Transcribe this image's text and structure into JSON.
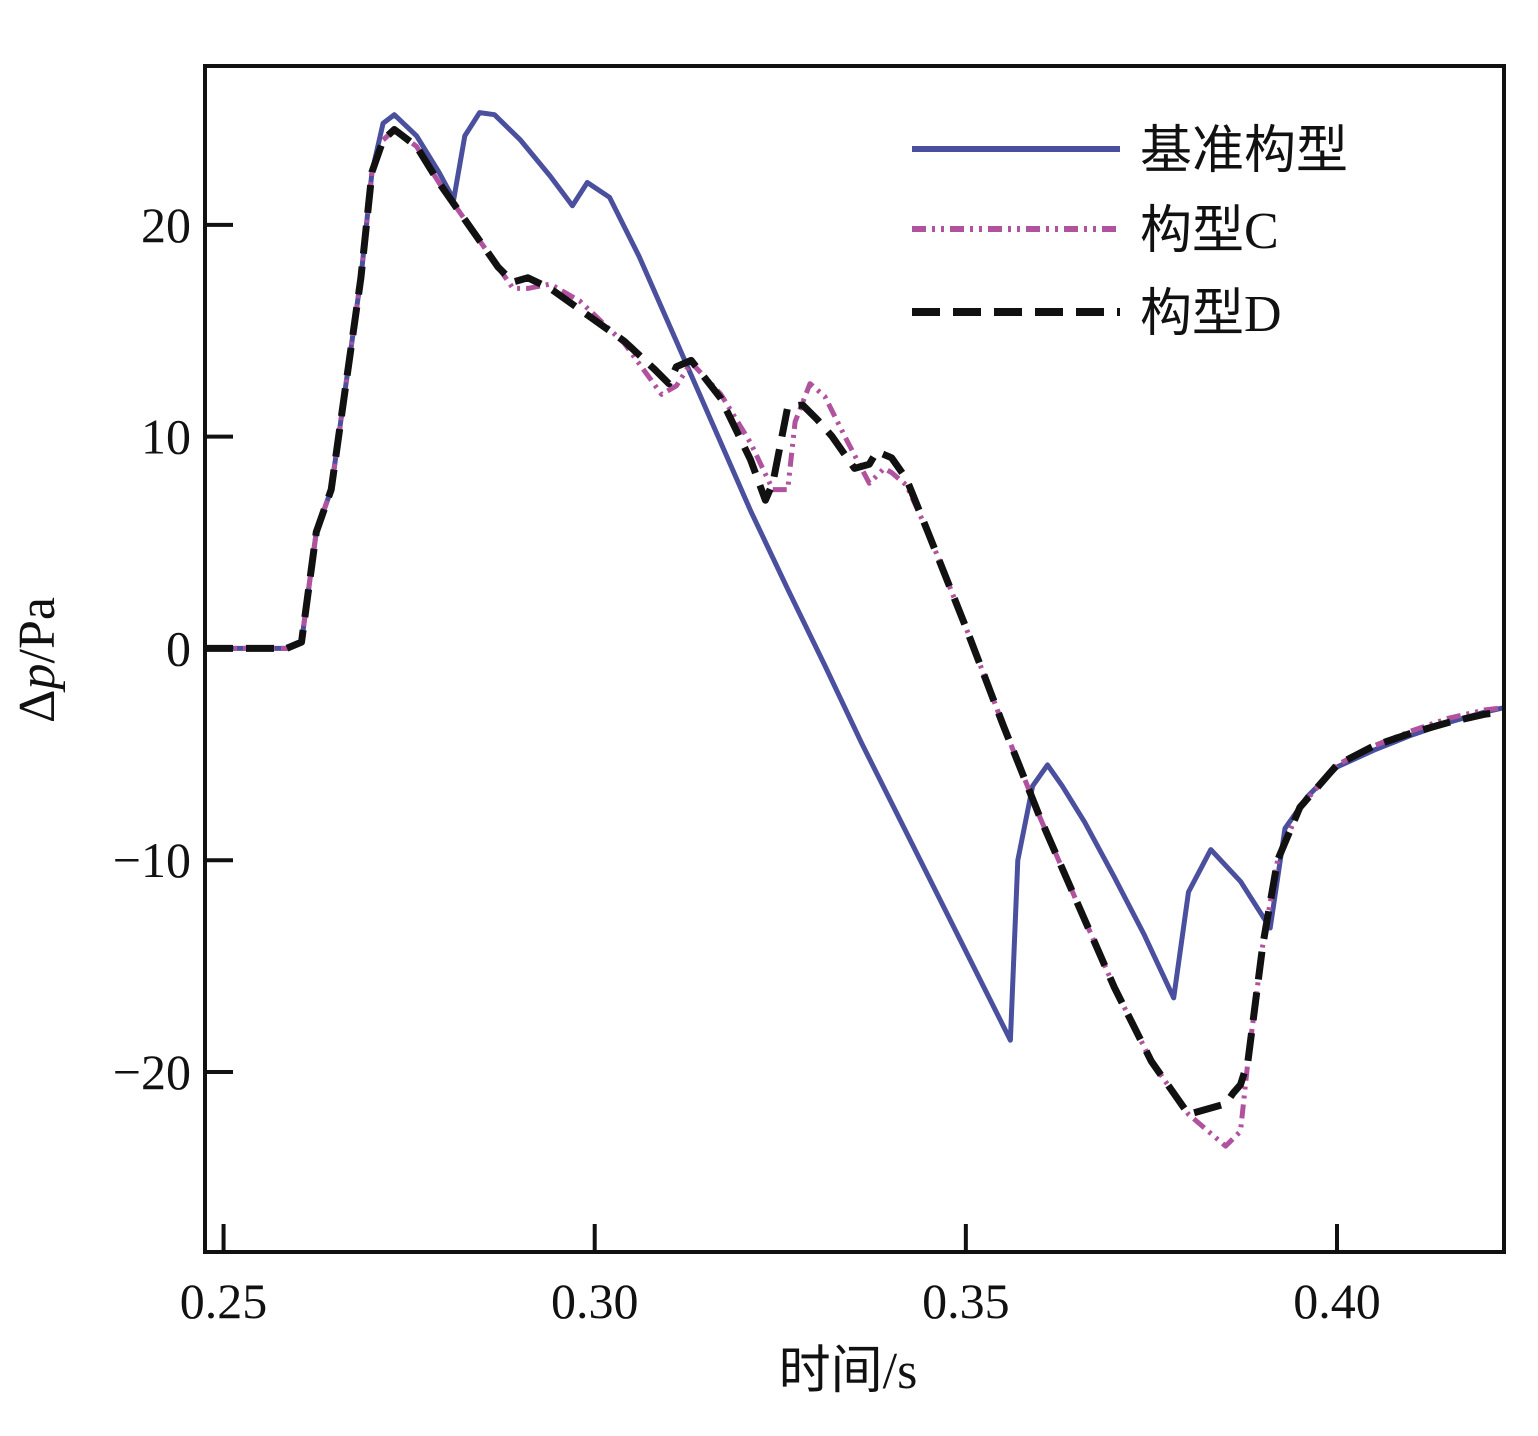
{
  "chart_data": {
    "type": "line",
    "title": "",
    "xlabel": "时间/s",
    "ylabel_parts": [
      "Δ",
      "p",
      "/Pa"
    ],
    "xlim": [
      0.2475,
      0.4225
    ],
    "ylim": [
      -28.5,
      27.5
    ],
    "xticks": [
      0.25,
      0.3,
      0.35,
      0.4
    ],
    "xtick_labels": [
      "0.25",
      "0.30",
      "0.35",
      "0.40"
    ],
    "yticks": [
      -20,
      -10,
      0,
      10,
      20
    ],
    "ytick_labels": [
      "−20",
      "−10",
      "0",
      "10",
      "20"
    ],
    "grid": false,
    "legend_position": "top-right",
    "series": [
      {
        "name": "基准构型",
        "color": "#4a4f9e",
        "style": "solid",
        "x": [
          0.2475,
          0.2585,
          0.2605,
          0.2625,
          0.2645,
          0.2665,
          0.2685,
          0.27,
          0.2715,
          0.273,
          0.276,
          0.279,
          0.281,
          0.2825,
          0.2845,
          0.2865,
          0.29,
          0.294,
          0.297,
          0.299,
          0.302,
          0.306,
          0.311,
          0.316,
          0.321,
          0.326,
          0.331,
          0.336,
          0.341,
          0.346,
          0.351,
          0.356,
          0.357,
          0.359,
          0.361,
          0.363,
          0.366,
          0.37,
          0.374,
          0.378,
          0.38,
          0.383,
          0.387,
          0.391,
          0.393,
          0.396,
          0.4,
          0.405,
          0.41,
          0.415,
          0.42,
          0.4225
        ],
        "y": [
          0,
          0,
          0.3,
          5.5,
          7.5,
          12.5,
          17.5,
          22.5,
          24.8,
          25.2,
          24.2,
          22.5,
          21.2,
          24.2,
          25.3,
          25.2,
          24.0,
          22.3,
          20.9,
          22.0,
          21.3,
          18.5,
          14.5,
          10.5,
          6.5,
          2.8,
          -0.8,
          -4.5,
          -8.0,
          -11.5,
          -15.0,
          -18.5,
          -10.0,
          -6.5,
          -5.5,
          -6.5,
          -8.2,
          -10.8,
          -13.5,
          -16.5,
          -11.5,
          -9.5,
          -11.0,
          -13.2,
          -8.5,
          -7.0,
          -5.6,
          -4.8,
          -4.1,
          -3.5,
          -3.0,
          -2.8
        ]
      },
      {
        "name": "构型C",
        "color": "#b0529e",
        "style": "dash-dot-dot",
        "x": [
          0.2475,
          0.2585,
          0.2605,
          0.2625,
          0.2645,
          0.2665,
          0.2685,
          0.27,
          0.2715,
          0.273,
          0.276,
          0.279,
          0.281,
          0.284,
          0.287,
          0.289,
          0.291,
          0.294,
          0.298,
          0.304,
          0.309,
          0.311,
          0.313,
          0.317,
          0.321,
          0.324,
          0.326,
          0.327,
          0.329,
          0.331,
          0.334,
          0.337,
          0.339,
          0.34,
          0.342,
          0.345,
          0.35,
          0.355,
          0.36,
          0.365,
          0.37,
          0.375,
          0.38,
          0.385,
          0.387,
          0.388,
          0.39,
          0.392,
          0.395,
          0.4,
          0.405,
          0.41,
          0.415,
          0.42,
          0.4225
        ],
        "y": [
          0,
          0,
          0.3,
          5.5,
          7.5,
          12.5,
          17.5,
          22.5,
          24.0,
          24.5,
          23.7,
          22.0,
          21.0,
          19.5,
          18.0,
          17.0,
          17.0,
          17.2,
          16.4,
          14.4,
          12.0,
          12.4,
          13.5,
          12.0,
          9.7,
          7.5,
          7.5,
          10.7,
          12.5,
          11.9,
          9.8,
          7.8,
          8.5,
          8.3,
          7.7,
          5.4,
          1.0,
          -3.6,
          -8.0,
          -12.0,
          -16.0,
          -19.5,
          -22.0,
          -23.5,
          -22.8,
          -19.5,
          -14.0,
          -10.0,
          -7.5,
          -5.5,
          -4.6,
          -3.9,
          -3.3,
          -2.9,
          -2.8
        ]
      },
      {
        "name": "构型D",
        "color": "#111111",
        "style": "dashed",
        "x": [
          0.2475,
          0.2585,
          0.2605,
          0.2625,
          0.2645,
          0.2665,
          0.2685,
          0.27,
          0.2715,
          0.273,
          0.276,
          0.279,
          0.281,
          0.284,
          0.287,
          0.289,
          0.291,
          0.294,
          0.298,
          0.304,
          0.308,
          0.31,
          0.311,
          0.313,
          0.317,
          0.321,
          0.323,
          0.324,
          0.326,
          0.328,
          0.33,
          0.332,
          0.335,
          0.337,
          0.338,
          0.34,
          0.342,
          0.345,
          0.35,
          0.355,
          0.36,
          0.365,
          0.37,
          0.375,
          0.38,
          0.385,
          0.386,
          0.387,
          0.388,
          0.39,
          0.392,
          0.395,
          0.4,
          0.405,
          0.41,
          0.415,
          0.42,
          0.4225
        ],
        "y": [
          0,
          0,
          0.3,
          5.5,
          7.5,
          12.5,
          17.5,
          22.5,
          24.0,
          24.5,
          23.7,
          22.0,
          21.0,
          19.5,
          18.0,
          17.3,
          17.5,
          17.0,
          16.0,
          14.5,
          13.2,
          12.5,
          13.3,
          13.6,
          11.8,
          8.9,
          7.0,
          7.8,
          11.4,
          11.5,
          10.8,
          10.0,
          8.5,
          8.7,
          9.3,
          9.0,
          8.0,
          5.4,
          1.0,
          -3.6,
          -8.0,
          -12.0,
          -16.0,
          -19.5,
          -22.0,
          -21.5,
          -21.0,
          -20.6,
          -19.5,
          -14.0,
          -10.0,
          -7.5,
          -5.5,
          -4.6,
          -4.0,
          -3.5,
          -3.1,
          -3.0
        ]
      }
    ]
  }
}
